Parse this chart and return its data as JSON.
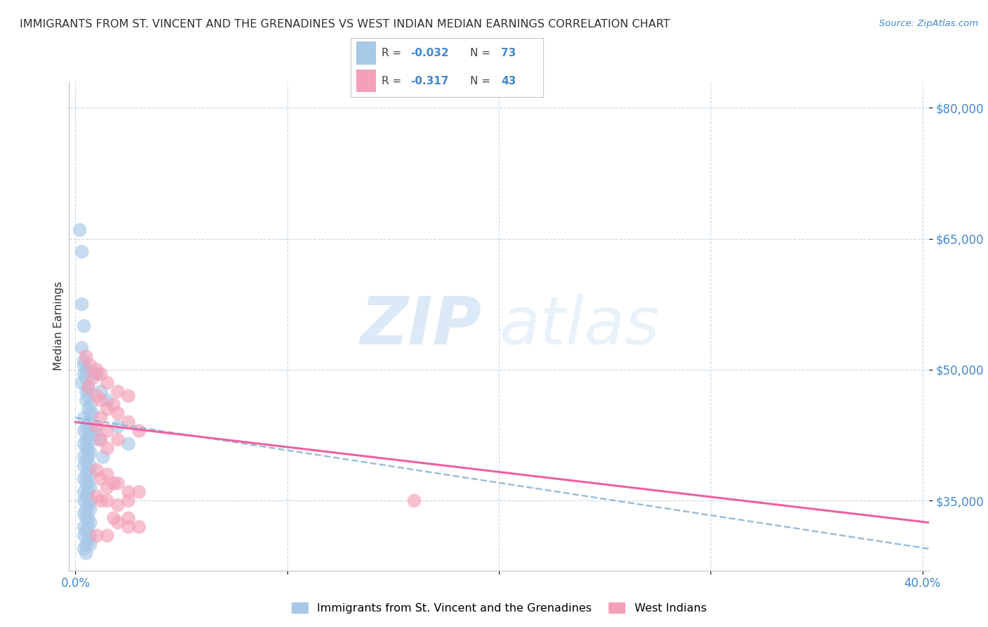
{
  "title": "IMMIGRANTS FROM ST. VINCENT AND THE GRENADINES VS WEST INDIAN MEDIAN EARNINGS CORRELATION CHART",
  "source": "Source: ZipAtlas.com",
  "ylabel": "Median Earnings",
  "ytick_labels": [
    "$35,000",
    "$50,000",
    "$65,000",
    "$80,000"
  ],
  "ytick_values": [
    35000,
    50000,
    65000,
    80000
  ],
  "ymin": 27000,
  "ymax": 83000,
  "xmin": -0.003,
  "xmax": 0.403,
  "watermark_zip": "ZIP",
  "watermark_atlas": "atlas",
  "blue_color": "#a8c8e8",
  "pink_color": "#f4a0b8",
  "blue_line_color": "#90b8d8",
  "pink_line_color": "#f060a0",
  "title_color": "#303030",
  "axis_label_color": "#4488cc",
  "blue_scatter": [
    [
      0.002,
      66000
    ],
    [
      0.003,
      63500
    ],
    [
      0.003,
      57500
    ],
    [
      0.004,
      55000
    ],
    [
      0.003,
      52500
    ],
    [
      0.004,
      51000
    ],
    [
      0.004,
      50500
    ],
    [
      0.005,
      50000
    ],
    [
      0.004,
      49500
    ],
    [
      0.005,
      49000
    ],
    [
      0.003,
      48500
    ],
    [
      0.006,
      48000
    ],
    [
      0.005,
      47500
    ],
    [
      0.006,
      47000
    ],
    [
      0.005,
      46500
    ],
    [
      0.007,
      46000
    ],
    [
      0.006,
      45500
    ],
    [
      0.007,
      45000
    ],
    [
      0.004,
      44500
    ],
    [
      0.006,
      44000
    ],
    [
      0.005,
      43500
    ],
    [
      0.007,
      43000
    ],
    [
      0.004,
      43000
    ],
    [
      0.006,
      42500
    ],
    [
      0.005,
      42000
    ],
    [
      0.007,
      42000
    ],
    [
      0.004,
      41500
    ],
    [
      0.006,
      41000
    ],
    [
      0.005,
      41000
    ],
    [
      0.007,
      40500
    ],
    [
      0.004,
      40000
    ],
    [
      0.006,
      40000
    ],
    [
      0.005,
      39500
    ],
    [
      0.007,
      39000
    ],
    [
      0.004,
      39000
    ],
    [
      0.006,
      38500
    ],
    [
      0.005,
      38000
    ],
    [
      0.007,
      38000
    ],
    [
      0.004,
      37500
    ],
    [
      0.006,
      37000
    ],
    [
      0.005,
      37000
    ],
    [
      0.007,
      36500
    ],
    [
      0.004,
      36000
    ],
    [
      0.006,
      36000
    ],
    [
      0.005,
      35500
    ],
    [
      0.007,
      35000
    ],
    [
      0.004,
      35000
    ],
    [
      0.006,
      34500
    ],
    [
      0.005,
      34000
    ],
    [
      0.007,
      34000
    ],
    [
      0.004,
      33500
    ],
    [
      0.006,
      33000
    ],
    [
      0.005,
      33000
    ],
    [
      0.007,
      32500
    ],
    [
      0.004,
      32000
    ],
    [
      0.006,
      32000
    ],
    [
      0.005,
      31500
    ],
    [
      0.007,
      31000
    ],
    [
      0.004,
      31000
    ],
    [
      0.006,
      30500
    ],
    [
      0.005,
      30000
    ],
    [
      0.007,
      30000
    ],
    [
      0.004,
      29500
    ],
    [
      0.005,
      29000
    ],
    [
      0.01,
      49500
    ],
    [
      0.012,
      47500
    ],
    [
      0.015,
      46500
    ],
    [
      0.02,
      43500
    ],
    [
      0.025,
      41500
    ],
    [
      0.008,
      45000
    ],
    [
      0.009,
      43000
    ],
    [
      0.011,
      42000
    ],
    [
      0.013,
      40000
    ]
  ],
  "pink_scatter": [
    [
      0.005,
      51500
    ],
    [
      0.007,
      50500
    ],
    [
      0.01,
      50000
    ],
    [
      0.012,
      49500
    ],
    [
      0.008,
      49000
    ],
    [
      0.015,
      48500
    ],
    [
      0.006,
      48000
    ],
    [
      0.02,
      47500
    ],
    [
      0.01,
      47000
    ],
    [
      0.025,
      47000
    ],
    [
      0.012,
      46500
    ],
    [
      0.018,
      46000
    ],
    [
      0.015,
      45500
    ],
    [
      0.02,
      45000
    ],
    [
      0.012,
      44500
    ],
    [
      0.025,
      44000
    ],
    [
      0.01,
      43500
    ],
    [
      0.03,
      43000
    ],
    [
      0.015,
      43000
    ],
    [
      0.02,
      42000
    ],
    [
      0.012,
      42000
    ],
    [
      0.015,
      41000
    ],
    [
      0.01,
      38500
    ],
    [
      0.015,
      38000
    ],
    [
      0.012,
      37500
    ],
    [
      0.018,
      37000
    ],
    [
      0.02,
      37000
    ],
    [
      0.015,
      36500
    ],
    [
      0.025,
      36000
    ],
    [
      0.03,
      36000
    ],
    [
      0.01,
      35500
    ],
    [
      0.012,
      35000
    ],
    [
      0.015,
      35000
    ],
    [
      0.02,
      34500
    ],
    [
      0.025,
      35000
    ],
    [
      0.16,
      35000
    ],
    [
      0.018,
      33000
    ],
    [
      0.025,
      33000
    ],
    [
      0.02,
      32500
    ],
    [
      0.03,
      32000
    ],
    [
      0.025,
      32000
    ],
    [
      0.01,
      31000
    ],
    [
      0.015,
      31000
    ]
  ],
  "blue_trendline_x": [
    0.0,
    0.403
  ],
  "blue_trendline_y": [
    44500,
    29500
  ],
  "pink_trendline_x": [
    0.0,
    0.403
  ],
  "pink_trendline_y": [
    44000,
    32500
  ]
}
